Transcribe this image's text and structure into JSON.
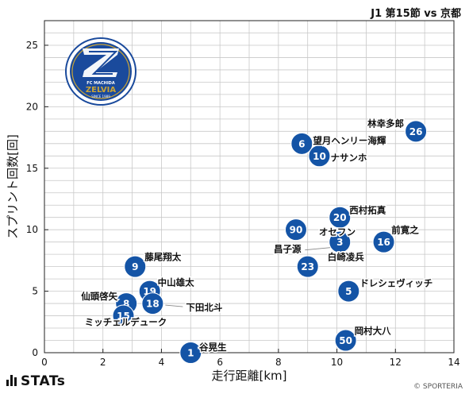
{
  "header": {
    "match_title": "J1 第15節 vs 京都"
  },
  "footer": {
    "brand": "STATs",
    "copyright": "© SPORTERIA"
  },
  "badge": {
    "icon": "zelvia-club-crest-icon",
    "primary_color": "#1a4a9c",
    "accent_color": "#c9a437",
    "text_line1": "FC MACHIDA",
    "text_line2": "ZELVIA",
    "text_line3": "SINCE 1989"
  },
  "colors": {
    "marker": "#1454a6",
    "marker_text": "#ffffff",
    "grid": "#c8c8c8"
  },
  "chart_data": {
    "type": "scatter",
    "title": "",
    "xlabel": "走行距離[km]",
    "ylabel": "スプリント回数[回]",
    "xlim": [
      0,
      14
    ],
    "ylim": [
      0,
      27
    ],
    "xticks": [
      0,
      2,
      4,
      6,
      8,
      10,
      12,
      14
    ],
    "yticks": [
      0,
      5,
      10,
      15,
      20,
      25
    ],
    "grid": true,
    "points": [
      {
        "number": "26",
        "name": "林幸多郎",
        "x": 12.7,
        "y": 18
      },
      {
        "number": "6",
        "name": "望月ヘンリー海輝",
        "x": 8.8,
        "y": 17
      },
      {
        "number": "10",
        "name": "ナサンホ",
        "x": 9.4,
        "y": 16
      },
      {
        "number": "20",
        "name": "西村拓真",
        "x": 10.1,
        "y": 11
      },
      {
        "number": "90",
        "name": "オセフン",
        "x": 8.6,
        "y": 10
      },
      {
        "number": "3",
        "name": "昌子源",
        "x": 10.1,
        "y": 9
      },
      {
        "number": "16",
        "name": "前寛之",
        "x": 11.6,
        "y": 9
      },
      {
        "number": "23",
        "name": "白崎凌兵",
        "x": 9.0,
        "y": 7
      },
      {
        "number": "9",
        "name": "藤尾翔太",
        "x": 3.1,
        "y": 7
      },
      {
        "number": "19",
        "name": "中山雄太",
        "x": 3.6,
        "y": 5
      },
      {
        "number": "5",
        "name": "ドレシェヴィッチ",
        "x": 10.4,
        "y": 5
      },
      {
        "number": "8",
        "name": "仙頭啓矢",
        "x": 2.8,
        "y": 4
      },
      {
        "number": "18",
        "name": "下田北斗",
        "x": 3.7,
        "y": 4
      },
      {
        "number": "15",
        "name": "ミッチェルデューク",
        "x": 2.7,
        "y": 3
      },
      {
        "number": "50",
        "name": "岡村大八",
        "x": 10.3,
        "y": 1
      },
      {
        "number": "1",
        "name": "谷晃生",
        "x": 5.0,
        "y": 0
      }
    ]
  }
}
